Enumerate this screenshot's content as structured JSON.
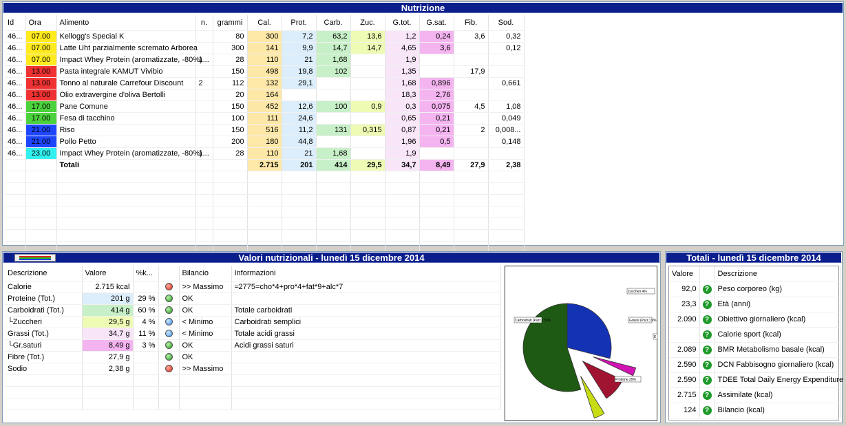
{
  "nutrizione": {
    "title": "Nutrizione",
    "headers": [
      "Id",
      "Ora",
      "Alimento",
      "n.",
      "grammi",
      "Cal.",
      "Prot.",
      "Carb.",
      "Zuc.",
      "G.tot.",
      "G.sat.",
      "Fib.",
      "Sod."
    ],
    "rows": [
      {
        "id": "46...",
        "ora": "07.00",
        "ora_color": "yellow",
        "alimento": "Kellogg's Special K",
        "n": "",
        "grammi": "80",
        "cal": "300",
        "prot": "7,2",
        "carb": "63,2",
        "zuc": "13,6",
        "gtot": "1,2",
        "gsat": "0,24",
        "fib": "3,6",
        "sod": "0,32"
      },
      {
        "id": "46...",
        "ora": "07.00",
        "ora_color": "yellow",
        "alimento": "Latte Uht parzialmente scremato Arborea",
        "n": "",
        "grammi": "300",
        "cal": "141",
        "prot": "9,9",
        "carb": "14,7",
        "zuc": "14,7",
        "gtot": "4,65",
        "gsat": "3,6",
        "fib": "",
        "sod": "0,12"
      },
      {
        "id": "46...",
        "ora": "07.00",
        "ora_color": "yellow",
        "alimento": "Impact Whey Protein (aromatizzate, -80%)",
        "n": "1...",
        "grammi": "28",
        "cal": "110",
        "prot": "21",
        "carb": "1,68",
        "zuc": "",
        "gtot": "1,9",
        "gsat": "",
        "fib": "",
        "sod": ""
      },
      {
        "id": "46...",
        "ora": "13.00",
        "ora_color": "red",
        "alimento": "Pasta integrale KAMUT Vivibio",
        "n": "",
        "grammi": "150",
        "cal": "498",
        "prot": "19,8",
        "carb": "102",
        "zuc": "",
        "gtot": "1,35",
        "gsat": "",
        "fib": "17,9",
        "sod": ""
      },
      {
        "id": "46...",
        "ora": "13.00",
        "ora_color": "red",
        "alimento": "Tonno al naturale Carrefour Discount",
        "n": "2",
        "grammi": "112",
        "cal": "132",
        "prot": "29,1",
        "carb": "",
        "zuc": "",
        "gtot": "1,68",
        "gsat": "0,896",
        "fib": "",
        "sod": "0,661"
      },
      {
        "id": "46...",
        "ora": "13.00",
        "ora_color": "red",
        "alimento": "Olio extravergine d'oliva Bertolli",
        "n": "",
        "grammi": "20",
        "cal": "164",
        "prot": "",
        "carb": "",
        "zuc": "",
        "gtot": "18,3",
        "gsat": "2,76",
        "fib": "",
        "sod": ""
      },
      {
        "id": "46...",
        "ora": "17.00",
        "ora_color": "green",
        "alimento": "Pane Comune",
        "n": "",
        "grammi": "150",
        "cal": "452",
        "prot": "12,6",
        "carb": "100",
        "zuc": "0,9",
        "gtot": "0,3",
        "gsat": "0,075",
        "fib": "4,5",
        "sod": "1,08"
      },
      {
        "id": "46...",
        "ora": "17.00",
        "ora_color": "green",
        "alimento": "Fesa di tacchino",
        "n": "",
        "grammi": "100",
        "cal": "111",
        "prot": "24,6",
        "carb": "",
        "zuc": "",
        "gtot": "0,65",
        "gsat": "0,21",
        "fib": "",
        "sod": "0,049"
      },
      {
        "id": "46...",
        "ora": "21.00",
        "ora_color": "blue",
        "alimento": "Riso",
        "n": "",
        "grammi": "150",
        "cal": "516",
        "prot": "11,2",
        "carb": "131",
        "zuc": "0,315",
        "gtot": "0,87",
        "gsat": "0,21",
        "fib": "2",
        "sod": "0,008..."
      },
      {
        "id": "46...",
        "ora": "21.00",
        "ora_color": "blue",
        "alimento": "Pollo Petto",
        "n": "",
        "grammi": "200",
        "cal": "180",
        "prot": "44,8",
        "carb": "",
        "zuc": "",
        "gtot": "1,96",
        "gsat": "0,5",
        "fib": "",
        "sod": "0,148"
      },
      {
        "id": "46...",
        "ora": "23.00",
        "ora_color": "cyan",
        "alimento": "Impact Whey Protein (aromatizzate, -80%)",
        "n": "1...",
        "grammi": "28",
        "cal": "110",
        "prot": "21",
        "carb": "1,68",
        "zuc": "",
        "gtot": "1,9",
        "gsat": "",
        "fib": "",
        "sod": ""
      }
    ],
    "totals": {
      "label": "Totali",
      "cal": "2.715",
      "prot": "201",
      "carb": "414",
      "zuc": "29,5",
      "gtot": "34,7",
      "gsat": "8,49",
      "fib": "27,9",
      "sod": "2,38"
    }
  },
  "valori": {
    "title": "Valori nutrizionali - lunedì 15 dicembre 2014",
    "headers": [
      "Descrizione",
      "Valore",
      "%k...",
      "",
      "Bilancio",
      "Informazioni"
    ],
    "rows": [
      {
        "desc": "Calorie",
        "valore": "2.715 kcal",
        "perc": "",
        "status": "red",
        "bilancio": ">> Massimo",
        "info": "≈2775=cho*4+pro*4+fat*9+alc*7",
        "bg": ""
      },
      {
        "desc": "Proteine (Tot.)",
        "valore": "201 g",
        "perc": "29 %",
        "status": "green",
        "bilancio": "OK",
        "info": "",
        "bg": "prot"
      },
      {
        "desc": "Carboidrati (Tot.)",
        "valore": "414 g",
        "perc": "60 %",
        "status": "green",
        "bilancio": "OK",
        "info": "Totale carboidrati",
        "bg": "carb"
      },
      {
        "desc": "└Zuccheri",
        "valore": "29,5 g",
        "perc": "4 %",
        "status": "blue",
        "bilancio": "< Minimo",
        "info": "Carboidrati semplici",
        "bg": "zuc"
      },
      {
        "desc": "Grassi (Tot.)",
        "valore": "34,7 g",
        "perc": "11 %",
        "status": "blue",
        "bilancio": "< Minimo",
        "info": "Totale acidi grassi",
        "bg": "gtot"
      },
      {
        "desc": "└Gr.saturi",
        "valore": "8,49 g",
        "perc": "3 %",
        "status": "green",
        "bilancio": "OK",
        "info": "Acidi grassi saturi",
        "bg": "gsat"
      },
      {
        "desc": "Fibre (Tot.)",
        "valore": "27,9 g",
        "perc": "",
        "status": "green",
        "bilancio": "OK",
        "info": "",
        "bg": ""
      },
      {
        "desc": "Sodio",
        "valore": "2,38 g",
        "perc": "",
        "status": "red",
        "bilancio": ">> Massimo",
        "info": "",
        "bg": ""
      }
    ]
  },
  "chart_data": {
    "type": "pie",
    "title": "",
    "slices": [
      {
        "label": "Carboidrati (Parz.) 55%",
        "value": 55,
        "color": "#1e5a14"
      },
      {
        "label": "Zuccheri 4%",
        "value": 4,
        "color": "#c8dc14"
      },
      {
        "label": "Grassi (Parz.) 9%",
        "value": 9,
        "color": "#a01432"
      },
      {
        "label": "E",
        "value": 3,
        "color": "#d214b4"
      },
      {
        "label": "Proteine 29%",
        "value": 29,
        "color": "#1432b4"
      }
    ]
  },
  "totali": {
    "title": "Totali - lunedì 15 dicembre 2014",
    "headers": [
      "Valore",
      "",
      "Descrizione"
    ],
    "rows": [
      {
        "valore": "92,0",
        "desc": "Peso corporeo (kg)"
      },
      {
        "valore": "23,3",
        "desc": "Età (anni)"
      },
      {
        "valore": "2.090",
        "desc": "Obiettivo giornaliero (kcal)"
      },
      {
        "valore": "",
        "desc": "Calorie sport (kcal)"
      },
      {
        "valore": "2.089",
        "desc": "BMR Metabolismo basale (kcal)"
      },
      {
        "valore": "2.590",
        "desc": "DCN Fabbisogno giornaliero (kcal)"
      },
      {
        "valore": "2.590",
        "desc": "TDEE Total Daily Energy Expenditure"
      },
      {
        "valore": "2.715",
        "desc": "Assimilate (kcal)"
      },
      {
        "valore": "124",
        "desc": "Bilancio (kcal)"
      }
    ]
  },
  "colors": {
    "title_bar": "#0a1e8c",
    "cal": "#fde8a8",
    "prot": "#dceefb",
    "carb": "#c8f0c8",
    "zuc": "#eefbb4",
    "gtot": "#f8e6f8",
    "gsat": "#f4b4f0"
  }
}
